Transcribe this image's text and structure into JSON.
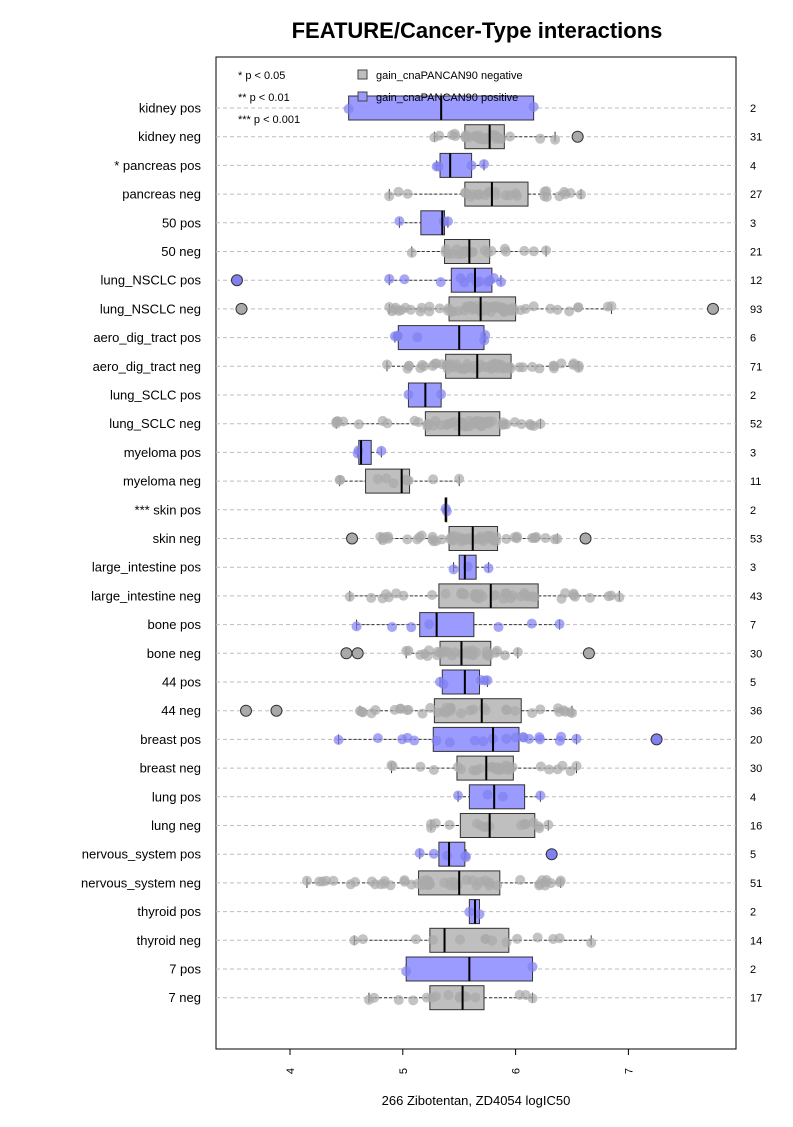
{
  "colors": {
    "negative": "#a9a9a9",
    "positive": "#8080f0",
    "positive_fill": "#9a9aff",
    "negative_fill": "#bfbfbf",
    "grid": "#bdbdbd"
  },
  "chart_data": {
    "type": "boxplot",
    "orientation": "horizontal",
    "title": "FEATURE/Cancer-Type interactions",
    "xlabel": "266 Zibotentan, ZD4054 logIC50",
    "xlim": [
      3.25,
      8.0
    ],
    "xticks": [
      4,
      5,
      6,
      7
    ],
    "grid": "horizontal dashed",
    "significance_legend": [
      "* p < 0.05",
      "** p < 0.01",
      "*** p < 0.001"
    ],
    "legend": [
      {
        "label": "gain_cnaPANCAN90 negative",
        "group": "neg"
      },
      {
        "label": "gain_cnaPANCAN90 positive",
        "group": "pos"
      }
    ],
    "rows": [
      {
        "label": "kidney pos",
        "n": "2",
        "group": "pos",
        "min": 4.52,
        "q1": 4.52,
        "median": 5.34,
        "q3": 6.16,
        "max": 6.16,
        "outliers": []
      },
      {
        "label": "kidney neg",
        "n": "31",
        "group": "neg",
        "min": 5.28,
        "q1": 5.55,
        "median": 5.77,
        "q3": 5.9,
        "max": 6.35,
        "outliers": [
          6.55
        ]
      },
      {
        "label": "* pancreas pos",
        "n": "4",
        "group": "pos",
        "min": 5.3,
        "q1": 5.33,
        "median": 5.42,
        "q3": 5.61,
        "max": 5.72,
        "outliers": []
      },
      {
        "label": "pancreas neg",
        "n": "27",
        "group": "neg",
        "min": 4.88,
        "q1": 5.55,
        "median": 5.79,
        "q3": 6.11,
        "max": 6.58,
        "outliers": []
      },
      {
        "label": "50 pos",
        "n": "3",
        "group": "pos",
        "min": 4.97,
        "q1": 5.16,
        "median": 5.35,
        "q3": 5.37,
        "max": 5.4,
        "outliers": []
      },
      {
        "label": "50 neg",
        "n": "21",
        "group": "neg",
        "min": 5.08,
        "q1": 5.37,
        "median": 5.59,
        "q3": 5.77,
        "max": 6.27,
        "outliers": []
      },
      {
        "label": "lung_NSCLC pos",
        "n": "12",
        "group": "pos",
        "min": 4.88,
        "q1": 5.43,
        "median": 5.64,
        "q3": 5.79,
        "max": 5.87,
        "outliers": [
          3.53
        ]
      },
      {
        "label": "lung_NSCLC neg",
        "n": "93",
        "group": "neg",
        "min": 4.88,
        "q1": 5.41,
        "median": 5.69,
        "q3": 6.0,
        "max": 6.85,
        "outliers": [
          3.57,
          7.75
        ]
      },
      {
        "label": "aero_dig_tract pos",
        "n": "6",
        "group": "pos",
        "min": 4.93,
        "q1": 4.96,
        "median": 5.5,
        "q3": 5.72,
        "max": 5.73,
        "outliers": []
      },
      {
        "label": "aero_dig_tract neg",
        "n": "71",
        "group": "neg",
        "min": 4.86,
        "q1": 5.38,
        "median": 5.66,
        "q3": 5.96,
        "max": 6.56,
        "outliers": []
      },
      {
        "label": "lung_SCLC pos",
        "n": "2",
        "group": "pos",
        "min": 5.05,
        "q1": 5.05,
        "median": 5.2,
        "q3": 5.34,
        "max": 5.34,
        "outliers": []
      },
      {
        "label": "lung_SCLC neg",
        "n": "52",
        "group": "neg",
        "min": 4.41,
        "q1": 5.2,
        "median": 5.5,
        "q3": 5.86,
        "max": 6.22,
        "outliers": []
      },
      {
        "label": "myeloma pos",
        "n": "3",
        "group": "pos",
        "min": 4.6,
        "q1": 4.61,
        "median": 4.63,
        "q3": 4.72,
        "max": 4.81,
        "outliers": []
      },
      {
        "label": "myeloma neg",
        "n": "11",
        "group": "neg",
        "min": 4.44,
        "q1": 4.67,
        "median": 4.99,
        "q3": 5.06,
        "max": 5.5,
        "outliers": []
      },
      {
        "label": "*** skin pos",
        "n": "2",
        "group": "pos",
        "min": 5.38,
        "q1": 5.38,
        "median": 5.38,
        "q3": 5.39,
        "max": 5.39,
        "outliers": []
      },
      {
        "label": "skin neg",
        "n": "53",
        "group": "neg",
        "min": 4.8,
        "q1": 5.41,
        "median": 5.62,
        "q3": 5.84,
        "max": 6.37,
        "outliers": [
          4.55,
          6.62
        ]
      },
      {
        "label": "large_intestine pos",
        "n": "3",
        "group": "pos",
        "min": 5.45,
        "q1": 5.5,
        "median": 5.55,
        "q3": 5.65,
        "max": 5.76,
        "outliers": []
      },
      {
        "label": "large_intestine neg",
        "n": "43",
        "group": "neg",
        "min": 4.53,
        "q1": 5.32,
        "median": 5.78,
        "q3": 6.2,
        "max": 6.92,
        "outliers": []
      },
      {
        "label": "bone pos",
        "n": "7",
        "group": "pos",
        "min": 4.59,
        "q1": 5.15,
        "median": 5.3,
        "q3": 5.63,
        "max": 6.39,
        "outliers": []
      },
      {
        "label": "bone neg",
        "n": "30",
        "group": "neg",
        "min": 5.03,
        "q1": 5.33,
        "median": 5.52,
        "q3": 5.78,
        "max": 6.02,
        "outliers": [
          4.5,
          4.6,
          6.65
        ]
      },
      {
        "label": "44 pos",
        "n": "5",
        "group": "pos",
        "min": 5.33,
        "q1": 5.35,
        "median": 5.55,
        "q3": 5.68,
        "max": 5.75,
        "outliers": []
      },
      {
        "label": "44 neg",
        "n": "36",
        "group": "neg",
        "min": 4.62,
        "q1": 5.28,
        "median": 5.7,
        "q3": 6.05,
        "max": 6.5,
        "outliers": [
          3.61,
          3.88
        ]
      },
      {
        "label": "breast pos",
        "n": "20",
        "group": "pos",
        "min": 4.43,
        "q1": 5.27,
        "median": 5.8,
        "q3": 6.03,
        "max": 6.54,
        "outliers": [
          7.25
        ]
      },
      {
        "label": "breast neg",
        "n": "30",
        "group": "neg",
        "min": 4.9,
        "q1": 5.48,
        "median": 5.74,
        "q3": 5.98,
        "max": 6.54,
        "outliers": []
      },
      {
        "label": "lung pos",
        "n": "4",
        "group": "pos",
        "min": 5.49,
        "q1": 5.59,
        "median": 5.81,
        "q3": 6.08,
        "max": 6.22,
        "outliers": []
      },
      {
        "label": "lung neg",
        "n": "16",
        "group": "neg",
        "min": 5.25,
        "q1": 5.51,
        "median": 5.77,
        "q3": 6.17,
        "max": 6.29,
        "outliers": []
      },
      {
        "label": "nervous_system pos",
        "n": "5",
        "group": "pos",
        "min": 5.15,
        "q1": 5.32,
        "median": 5.41,
        "q3": 5.55,
        "max": 5.56,
        "outliers": [
          6.32
        ]
      },
      {
        "label": "nervous_system neg",
        "n": "51",
        "group": "neg",
        "min": 4.15,
        "q1": 5.14,
        "median": 5.5,
        "q3": 5.86,
        "max": 6.4,
        "outliers": []
      },
      {
        "label": "thyroid pos",
        "n": "2",
        "group": "pos",
        "min": 5.59,
        "q1": 5.59,
        "median": 5.64,
        "q3": 5.68,
        "max": 5.68,
        "outliers": []
      },
      {
        "label": "thyroid neg",
        "n": "14",
        "group": "neg",
        "min": 4.57,
        "q1": 5.24,
        "median": 5.37,
        "q3": 5.94,
        "max": 6.67,
        "outliers": []
      },
      {
        "label": "7 pos",
        "n": "2",
        "group": "pos",
        "min": 5.03,
        "q1": 5.03,
        "median": 5.59,
        "q3": 6.15,
        "max": 6.15,
        "outliers": []
      },
      {
        "label": "7 neg",
        "n": "17",
        "group": "neg",
        "min": 4.7,
        "q1": 5.24,
        "median": 5.53,
        "q3": 5.72,
        "max": 6.15,
        "outliers": []
      }
    ]
  }
}
